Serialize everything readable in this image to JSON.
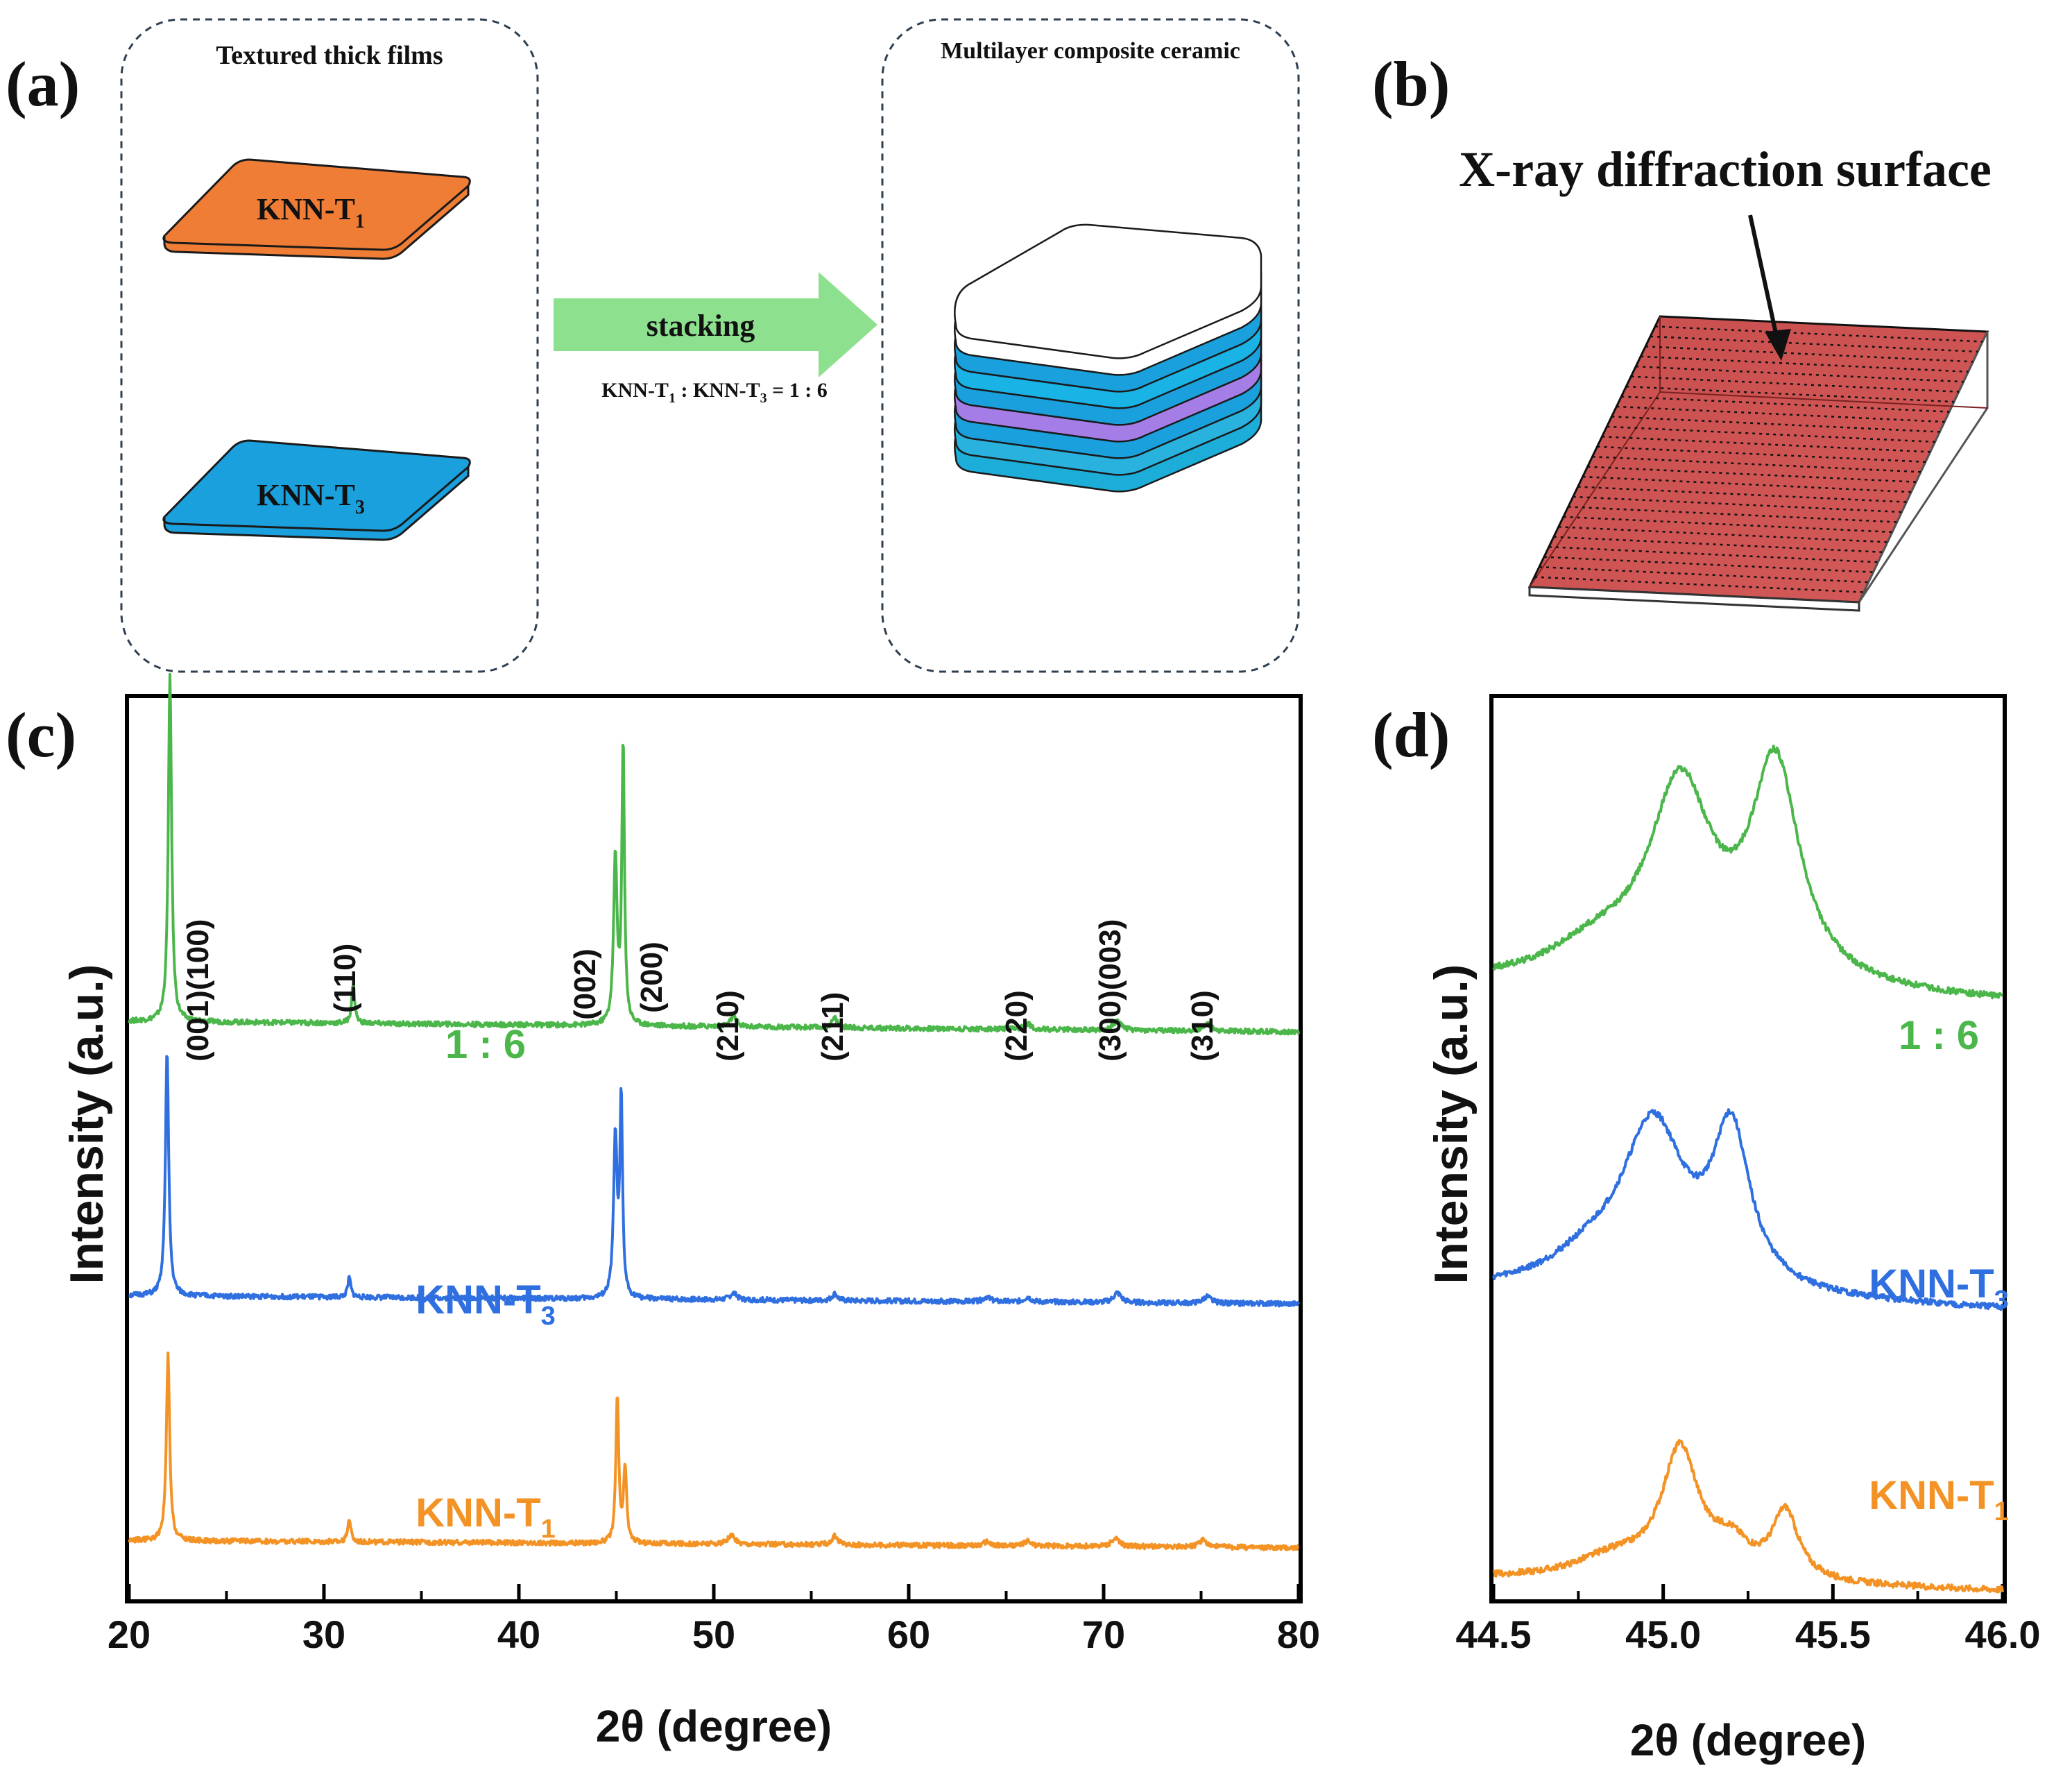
{
  "panel_labels": {
    "a": "(a)",
    "b": "(b)",
    "c": "(c)",
    "d": "(d)"
  },
  "panel_a": {
    "left_box_title": "Textured  thick films",
    "right_box_title": "Multilayer composite ceramic",
    "film_top": {
      "base": "KNN-T",
      "sub": "1"
    },
    "film_bottom": {
      "base": "KNN-T",
      "sub": "3"
    },
    "arrow_label": "stacking",
    "ratio": {
      "p1": "KNN-T",
      "s1": "1",
      "p2": " : KNN-T",
      "s2": "3",
      "p3": " = 1 : 6"
    }
  },
  "panel_b": {
    "label": "X-ray diffraction surface"
  },
  "colors": {
    "green": "#4bb74a",
    "blue": "#2f6fe0",
    "orange": "#f39325",
    "arrow": "#8de08d",
    "film_orange": "#f07d35",
    "film_blue": "#1aa0dd",
    "slab_red": "#c94f4f"
  },
  "chart_data": [
    {
      "id": "c",
      "type": "line",
      "xlabel": "2θ (degree)",
      "ylabel": "Intensity (a.u.)",
      "xlim": [
        20,
        80
      ],
      "ylim": [
        0,
        4.6
      ],
      "xticks": [
        "20",
        "30",
        "40",
        "50",
        "60",
        "70",
        "80"
      ],
      "peak_labels": [
        "(001)(100)",
        "(110)",
        "(002)",
        "(200)",
        "(210)",
        "(211)",
        "(220)",
        "(300)(003)",
        "(310)"
      ],
      "series": [
        {
          "name": "1 : 6",
          "label_base": "1 : 6",
          "label_sub": "",
          "color": "#4bb74a",
          "offset": 2.95,
          "slope": -0.0009,
          "peaks": [
            [
              22.1,
              1.76,
              0.15
            ],
            [
              31.5,
              0.2,
              0.14
            ],
            [
              44.95,
              0.85,
              0.16
            ],
            [
              45.35,
              1.42,
              0.12
            ],
            [
              51.0,
              0.05,
              0.3
            ],
            [
              56.2,
              0.05,
              0.25
            ],
            [
              66.1,
              0.03,
              0.3
            ],
            [
              70.7,
              0.05,
              0.35
            ],
            [
              75.3,
              0.04,
              0.35
            ]
          ]
        },
        {
          "name": "KNN-T3",
          "label_base": "KNN-T",
          "label_sub": "3",
          "color": "#2f6fe0",
          "offset": 1.55,
          "slope": -0.0007,
          "peaks": [
            [
              21.95,
              1.25,
              0.15
            ],
            [
              31.3,
              0.1,
              0.14
            ],
            [
              44.95,
              0.82,
              0.16
            ],
            [
              45.25,
              1.0,
              0.12
            ],
            [
              51.0,
              0.035,
              0.3
            ],
            [
              56.2,
              0.035,
              0.25
            ],
            [
              64.0,
              0.025,
              0.3
            ],
            [
              66.1,
              0.025,
              0.3
            ],
            [
              70.7,
              0.05,
              0.35
            ],
            [
              75.3,
              0.035,
              0.35
            ]
          ]
        },
        {
          "name": "KNN-T1",
          "label_base": "KNN-T",
          "label_sub": "1",
          "color": "#f39325",
          "offset": 0.3,
          "slope": -0.0006,
          "peaks": [
            [
              22.0,
              0.95,
              0.15
            ],
            [
              31.3,
              0.12,
              0.14
            ],
            [
              45.05,
              0.75,
              0.13
            ],
            [
              45.45,
              0.38,
              0.14
            ],
            [
              50.9,
              0.045,
              0.3
            ],
            [
              56.2,
              0.045,
              0.25
            ],
            [
              64.0,
              0.02,
              0.3
            ],
            [
              66.1,
              0.025,
              0.3
            ],
            [
              70.6,
              0.04,
              0.35
            ],
            [
              75.1,
              0.035,
              0.35
            ]
          ]
        }
      ]
    },
    {
      "id": "d",
      "type": "line",
      "xlabel": "2θ (degree)",
      "ylabel": "Intensity (a.u.)",
      "xlim": [
        44.5,
        46.0
      ],
      "ylim": [
        0,
        4.4
      ],
      "xticks": [
        "44.5",
        "45.0",
        "45.5",
        "46.0"
      ],
      "series": [
        {
          "name": "1 : 6",
          "label_base": "1 : 6",
          "label_sub": "",
          "color": "#4bb74a",
          "offset": 3.0,
          "slope": -0.06,
          "peaks": [
            [
              45.05,
              0.95,
              0.17
            ],
            [
              45.33,
              1.05,
              0.13
            ],
            [
              44.8,
              0.15,
              0.25
            ]
          ]
        },
        {
          "name": "KNN-T3",
          "label_base": "KNN-T",
          "label_sub": "3",
          "color": "#2f6fe0",
          "offset": 1.5,
          "slope": -0.06,
          "peaks": [
            [
              44.97,
              0.8,
              0.17
            ],
            [
              45.2,
              0.75,
              0.1
            ],
            [
              44.78,
              0.12,
              0.22
            ]
          ]
        },
        {
          "name": "KNN-T1",
          "label_base": "KNN-T",
          "label_sub": "1",
          "color": "#f39325",
          "offset": 0.1,
          "slope": -0.04,
          "peaks": [
            [
              45.05,
              0.62,
              0.1
            ],
            [
              45.36,
              0.33,
              0.07
            ],
            [
              45.2,
              0.15,
              0.1
            ],
            [
              44.85,
              0.1,
              0.2
            ]
          ]
        }
      ]
    }
  ]
}
